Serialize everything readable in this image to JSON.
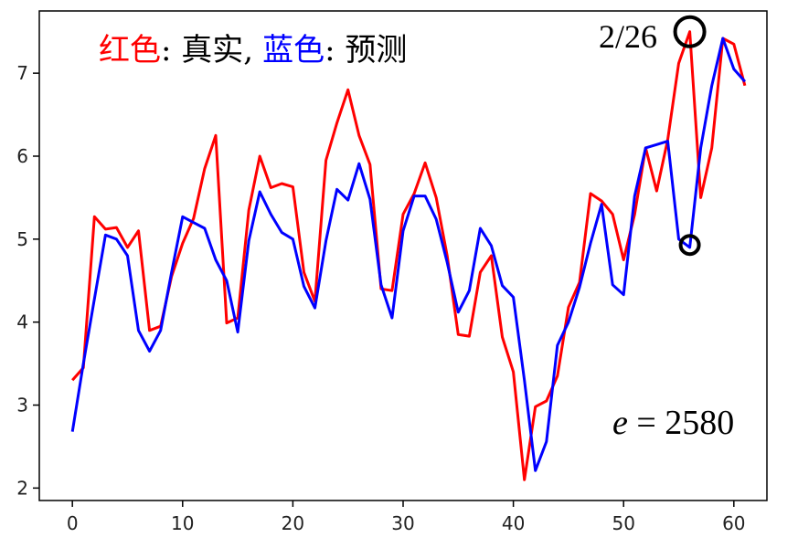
{
  "chart_data": {
    "type": "line",
    "title": "",
    "xlabel": "",
    "ylabel": "",
    "xlim": [
      -3,
      63
    ],
    "ylim": [
      1.85,
      7.75
    ],
    "x_ticks": [
      0,
      10,
      20,
      30,
      40,
      50,
      60
    ],
    "y_ticks": [
      2,
      3,
      4,
      5,
      6,
      7
    ],
    "grid": false,
    "x": [
      0,
      1,
      2,
      3,
      4,
      5,
      6,
      7,
      8,
      9,
      10,
      11,
      12,
      13,
      14,
      15,
      16,
      17,
      18,
      19,
      20,
      21,
      22,
      23,
      24,
      25,
      26,
      27,
      28,
      29,
      30,
      31,
      32,
      33,
      34,
      35,
      36,
      37,
      38,
      39,
      40,
      41,
      42,
      43,
      44,
      45,
      46,
      47,
      48,
      49,
      50,
      51,
      52,
      53,
      54,
      55,
      56,
      57,
      58,
      59,
      60,
      61
    ],
    "series": [
      {
        "name": "真实",
        "color": "#ff0000",
        "values": [
          3.3,
          3.45,
          5.27,
          5.12,
          5.14,
          4.9,
          5.1,
          3.9,
          3.95,
          4.55,
          4.95,
          5.25,
          5.85,
          6.25,
          3.99,
          4.05,
          5.35,
          6.0,
          5.62,
          5.67,
          5.63,
          4.6,
          4.25,
          5.95,
          6.4,
          6.8,
          6.25,
          5.9,
          4.4,
          4.38,
          5.3,
          5.55,
          5.92,
          5.5,
          4.8,
          3.85,
          3.83,
          4.6,
          4.8,
          3.82,
          3.4,
          2.1,
          2.98,
          3.05,
          3.35,
          4.18,
          4.48,
          5.55,
          5.46,
          5.3,
          4.75,
          5.3,
          6.1,
          5.58,
          6.2,
          7.12,
          7.5,
          5.5,
          6.1,
          7.42,
          7.35,
          6.85
        ]
      },
      {
        "name": "预测",
        "color": "#0000ff",
        "values": [
          2.68,
          3.5,
          4.28,
          5.05,
          5.0,
          4.8,
          3.9,
          3.65,
          3.9,
          4.6,
          5.27,
          5.2,
          5.13,
          4.75,
          4.5,
          3.88,
          4.98,
          5.57,
          5.3,
          5.08,
          5.0,
          4.43,
          4.17,
          4.98,
          5.6,
          5.47,
          5.91,
          5.48,
          4.45,
          4.05,
          5.1,
          5.52,
          5.52,
          5.24,
          4.72,
          4.12,
          4.38,
          5.13,
          4.92,
          4.44,
          4.3,
          3.3,
          2.21,
          2.56,
          3.72,
          4.0,
          4.42,
          4.95,
          5.42,
          4.45,
          4.33,
          5.52,
          6.1,
          6.14,
          6.18,
          5.0,
          4.9,
          6.1,
          6.85,
          7.42,
          7.05,
          6.9
        ]
      }
    ]
  },
  "legend": {
    "red_label": "红色",
    "red_sep": ": 真实,",
    "blue_label": "蓝色",
    "blue_sep": ": 预测"
  },
  "annotations": {
    "peak_label": "2/26",
    "eq_var": "e",
    "eq_rest": " = 2580",
    "circle_true": {
      "x": 56,
      "y": 7.5
    },
    "circle_pred": {
      "x": 56,
      "y": 4.93
    }
  }
}
